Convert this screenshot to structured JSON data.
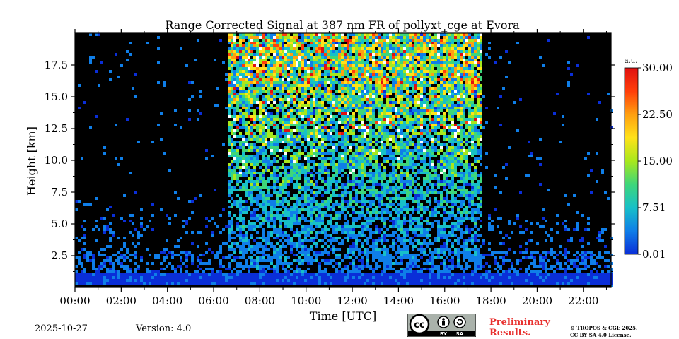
{
  "chart_data": {
    "type": "heatmap",
    "title": "Range Corrected Signal at 387 nm FR of pollyxt_cge at Evora",
    "xlabel": "Time [UTC]",
    "ylabel": "Height [km]",
    "xlim": [
      0,
      23.2
    ],
    "ylim": [
      0,
      20
    ],
    "xticks": [
      "00:00",
      "02:00",
      "04:00",
      "06:00",
      "08:00",
      "10:00",
      "12:00",
      "14:00",
      "16:00",
      "18:00",
      "20:00",
      "22:00"
    ],
    "yticks": [
      "2.5",
      "5.0",
      "7.5",
      "10.0",
      "12.5",
      "15.0",
      "17.5"
    ],
    "colorbar": {
      "unit": "a.u.",
      "ticks": [
        "30.00",
        "22.50",
        "15.00",
        "7.51",
        "0.01"
      ],
      "range": [
        0.01,
        30.0
      ],
      "colormap": [
        "#0a2ed8",
        "#0f7ee8",
        "#17c0c8",
        "#3ed67a",
        "#a8e81c",
        "#ffe21a",
        "#ff9f10",
        "#ff3e0a",
        "#e01010"
      ]
    },
    "segments": [
      {
        "start_hour": 0.0,
        "end_hour": 6.6,
        "signal": "night, surface layer only"
      },
      {
        "start_hour": 6.6,
        "end_hour": 17.6,
        "signal": "daytime high background"
      },
      {
        "start_hour": 17.6,
        "end_hour": 23.2,
        "signal": "night, surface layer only"
      }
    ],
    "grid": false
  },
  "footer": {
    "date": "2025-10-27",
    "version": "Version: 4.0",
    "preliminary_line1": "Preliminary",
    "preliminary_line2": "Results.",
    "copyright_line1": "© TROPOS & CGE 2025.",
    "copyright_line2": "CC BY SA 4.0 License.",
    "cc_label": "cc",
    "by_label": "BY",
    "sa_label": "SA"
  }
}
